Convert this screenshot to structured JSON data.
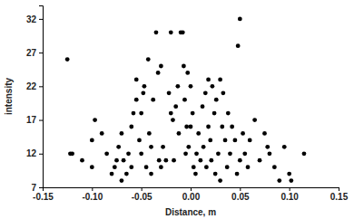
{
  "chart_data": {
    "type": "scatter",
    "x_label": "Distance, m",
    "y_label": "intensity",
    "color": "#000000",
    "marker": "circle",
    "xlim": [
      -0.15,
      0.15
    ],
    "xticks": [
      -0.15,
      {
        "value": -0.1,
        "label": "-0.10"
      },
      -0.05,
      {
        "value": 0,
        "label": "0.00"
      },
      0.05,
      {
        "value": 0.1,
        "label": "0.10"
      },
      0.15
    ],
    "ylim": [
      7,
      34
    ],
    "yticks": [
      7,
      12,
      17,
      22,
      27,
      32
    ],
    "x": [
      -0.125,
      -0.122,
      -0.12,
      -0.11,
      -0.1,
      -0.1,
      -0.097,
      -0.09,
      -0.085,
      -0.08,
      -0.077,
      -0.075,
      -0.073,
      -0.07,
      -0.07,
      -0.068,
      -0.065,
      -0.063,
      -0.06,
      -0.06,
      -0.058,
      -0.055,
      -0.055,
      -0.052,
      -0.05,
      -0.05,
      -0.048,
      -0.047,
      -0.045,
      -0.043,
      -0.042,
      -0.04,
      -0.04,
      -0.038,
      -0.035,
      -0.033,
      -0.032,
      -0.03,
      -0.03,
      -0.028,
      -0.025,
      -0.022,
      -0.02,
      -0.02,
      -0.018,
      -0.017,
      -0.015,
      -0.013,
      -0.012,
      -0.01,
      -0.008,
      -0.007,
      -0.006,
      -0.005,
      -0.004,
      -0.003,
      -0.002,
      0.0,
      0.0,
      0.002,
      0.003,
      0.005,
      0.006,
      0.008,
      0.01,
      0.012,
      0.013,
      0.015,
      0.016,
      0.018,
      0.018,
      0.02,
      0.021,
      0.022,
      0.024,
      0.025,
      0.026,
      0.028,
      0.03,
      0.03,
      0.032,
      0.033,
      0.035,
      0.037,
      0.038,
      0.04,
      0.042,
      0.045,
      0.047,
      0.048,
      0.05,
      0.05,
      0.053,
      0.055,
      0.058,
      0.06,
      0.065,
      0.07,
      0.075,
      0.078,
      0.08,
      0.085,
      0.09,
      0.095,
      0.1,
      0.102,
      0.115
    ],
    "values": [
      26,
      12,
      12,
      11,
      10,
      14,
      17,
      15,
      12,
      9,
      10,
      11,
      13,
      8,
      15,
      11,
      9,
      12,
      16,
      10,
      18,
      20,
      23,
      14,
      18,
      12,
      21,
      22,
      10,
      26,
      15,
      13,
      9,
      20,
      30,
      24,
      11,
      25,
      10,
      13,
      11,
      21,
      30,
      18,
      17,
      11,
      19,
      22,
      15,
      30,
      30,
      25,
      20,
      12,
      16,
      24,
      13,
      22,
      16,
      18,
      10,
      9,
      12,
      15,
      11,
      19,
      13,
      21,
      10,
      16,
      23,
      14,
      11,
      22,
      18,
      9,
      20,
      12,
      23,
      8,
      16,
      21,
      14,
      10,
      18,
      12,
      16,
      14,
      9,
      28,
      32,
      11,
      15,
      12,
      10,
      14,
      17,
      11,
      15,
      13,
      12,
      10,
      8,
      13,
      9,
      8,
      12
    ]
  }
}
